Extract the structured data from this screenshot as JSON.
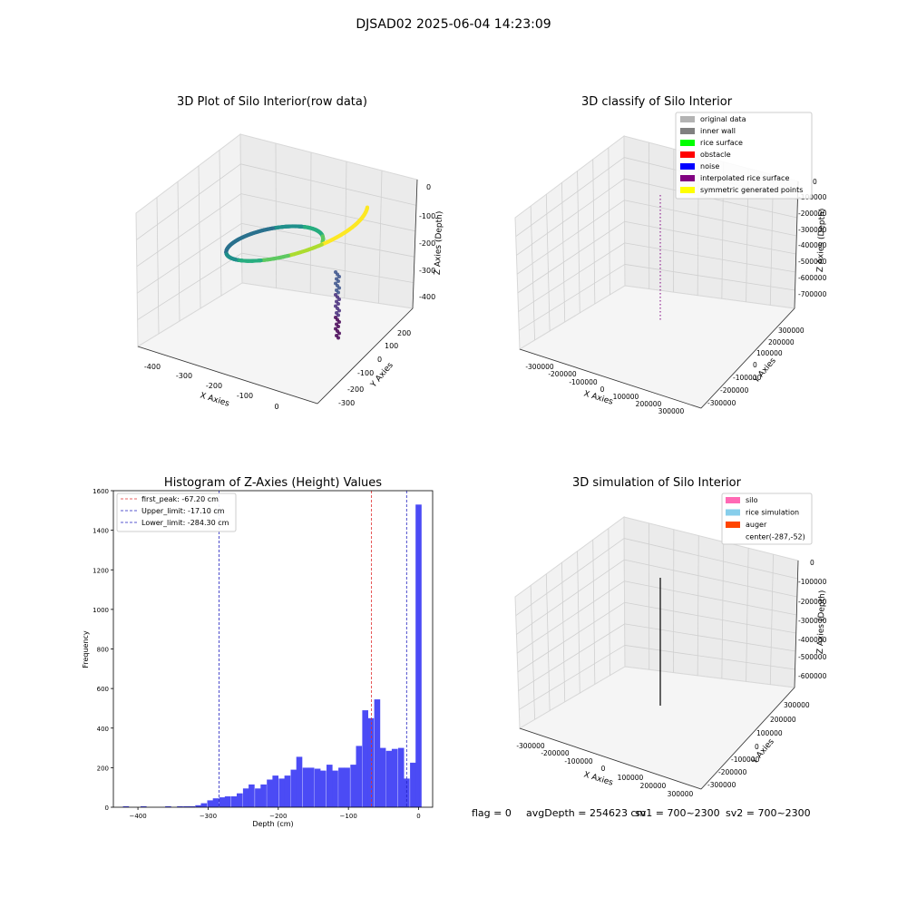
{
  "figure": {
    "suptitle": "DJSAD02 2025-06-04 14:23:09",
    "footer": {
      "flag": "flag = 0",
      "avg_depth": "avgDepth = 254623 cm",
      "sv1": "sv1 = 700~2300",
      "sv2": "sv2 = 700~2300"
    }
  },
  "colors": {
    "histogram_bar": "#4b4bf5",
    "first_peak_line": "#e03030",
    "limit_lines": "#2020c0",
    "pane": "#f2f2f2",
    "grid": "#cfcfcf"
  },
  "chart_data": [
    {
      "id": "raw3d",
      "type": "scatter",
      "title": "3D Plot of Silo Interior(row data)",
      "xlabel": "X Axies",
      "ylabel": "Y Axies",
      "zlabel": "Z Axies (Depth)",
      "xticks": [
        "-400",
        "-300",
        "-200",
        "-100",
        "0"
      ],
      "yticks": [
        "-300",
        "-200",
        "-100",
        "0",
        "100",
        "200"
      ],
      "zticks": [
        "0",
        "-100",
        "-200",
        "-300",
        "-400"
      ],
      "xlim": [
        -450,
        50
      ],
      "ylim": [
        -330,
        250
      ],
      "zlim": [
        -430,
        10
      ],
      "colormap": "viridis",
      "points_description": "ring-shaped point cloud of silo wall with a funnel at the center"
    },
    {
      "id": "classify3d",
      "type": "scatter",
      "title": "3D classify of Silo Interior",
      "xlabel": "X Axies",
      "ylabel": "Y Axies",
      "zlabel": "Z Axies (Depth)",
      "xticks": [
        "-300000",
        "-200000",
        "-100000",
        "0",
        "100000",
        "200000",
        "300000"
      ],
      "yticks": [
        "-300000",
        "-200000",
        "-100000",
        "0",
        "100000",
        "200000",
        "300000"
      ],
      "zticks": [
        "0",
        "-100000",
        "-200000",
        "-300000",
        "-400000",
        "-500000",
        "-600000",
        "-700000"
      ],
      "legend": [
        {
          "label": "original data",
          "color": "#b3b3b3"
        },
        {
          "label": "inner wall",
          "color": "#808080"
        },
        {
          "label": "rice surface",
          "color": "#00ff00"
        },
        {
          "label": "obstacle",
          "color": "#ff0000"
        },
        {
          "label": "noise",
          "color": "#0000ff"
        },
        {
          "label": "interpolated rice surface",
          "color": "#800080"
        },
        {
          "label": "symmetric generated points",
          "color": "#ffff00"
        }
      ],
      "legend_position": "upper right"
    },
    {
      "id": "hist",
      "type": "bar",
      "title": "Histogram of Z-Axies (Height) Values",
      "xlabel": "Depth (cm)",
      "ylabel": "Frequency",
      "xlim": [
        -435,
        20
      ],
      "ylim": [
        0,
        1600
      ],
      "xticks": [
        -400,
        -300,
        -200,
        -100,
        0
      ],
      "yticks": [
        0,
        200,
        400,
        600,
        800,
        1000,
        1200,
        1400,
        1600
      ],
      "bin_width": 8.5,
      "bins": [
        {
          "x": -417,
          "y": 5
        },
        {
          "x": -392,
          "y": 5
        },
        {
          "x": -357,
          "y": 5
        },
        {
          "x": -340,
          "y": 5
        },
        {
          "x": -331,
          "y": 5
        },
        {
          "x": -323,
          "y": 5
        },
        {
          "x": -314,
          "y": 10
        },
        {
          "x": -306,
          "y": 20
        },
        {
          "x": -297,
          "y": 35
        },
        {
          "x": -289,
          "y": 45
        },
        {
          "x": -280,
          "y": 50
        },
        {
          "x": -272,
          "y": 55
        },
        {
          "x": -263,
          "y": 55
        },
        {
          "x": -255,
          "y": 70
        },
        {
          "x": -246,
          "y": 95
        },
        {
          "x": -238,
          "y": 115
        },
        {
          "x": -229,
          "y": 95
        },
        {
          "x": -221,
          "y": 115
        },
        {
          "x": -212,
          "y": 140
        },
        {
          "x": -204,
          "y": 160
        },
        {
          "x": -195,
          "y": 145
        },
        {
          "x": -187,
          "y": 160
        },
        {
          "x": -178,
          "y": 190
        },
        {
          "x": -170,
          "y": 255
        },
        {
          "x": -161,
          "y": 200
        },
        {
          "x": -153,
          "y": 200
        },
        {
          "x": -144,
          "y": 195
        },
        {
          "x": -136,
          "y": 185
        },
        {
          "x": -127,
          "y": 215
        },
        {
          "x": -119,
          "y": 185
        },
        {
          "x": -110,
          "y": 200
        },
        {
          "x": -102,
          "y": 200
        },
        {
          "x": -93,
          "y": 215
        },
        {
          "x": -85,
          "y": 310
        },
        {
          "x": -76,
          "y": 490
        },
        {
          "x": -68,
          "y": 450
        },
        {
          "x": -59,
          "y": 545
        },
        {
          "x": -51,
          "y": 300
        },
        {
          "x": -42,
          "y": 285
        },
        {
          "x": -34,
          "y": 295
        },
        {
          "x": -25,
          "y": 300
        },
        {
          "x": -17,
          "y": 145
        },
        {
          "x": -8,
          "y": 225
        },
        {
          "x": 0,
          "y": 1530
        }
      ],
      "vlines": [
        {
          "label": "first_peak: -67.20 cm",
          "x": -67.2,
          "color": "#e03030"
        },
        {
          "label": "Upper_limit: -17.10 cm",
          "x": -17.1,
          "color": "#2020c0"
        },
        {
          "label": "Lower_limit: -284.30 cm",
          "x": -284.3,
          "color": "#2020c0"
        }
      ]
    },
    {
      "id": "sim3d",
      "type": "line",
      "title": "3D simulation of Silo Interior",
      "xlabel": "X Axies",
      "ylabel": "Y Axies",
      "zlabel": "Z Axies (Depth)",
      "xticks": [
        "-300000",
        "-200000",
        "-100000",
        "0",
        "100000",
        "200000",
        "300000"
      ],
      "yticks": [
        "-300000",
        "-200000",
        "-100000",
        "0",
        "100000",
        "200000",
        "300000"
      ],
      "zticks": [
        "0",
        "-100000",
        "-200000",
        "-300000",
        "-400000",
        "-500000",
        "-600000"
      ],
      "legend": [
        {
          "label": "silo",
          "color": "#ff69b4"
        },
        {
          "label": "rice simulation",
          "color": "#87ceeb"
        },
        {
          "label": "auger",
          "color": "#ff4500"
        },
        {
          "label": "center(-287,-52)",
          "color": ""
        }
      ],
      "legend_position": "upper right"
    }
  ]
}
